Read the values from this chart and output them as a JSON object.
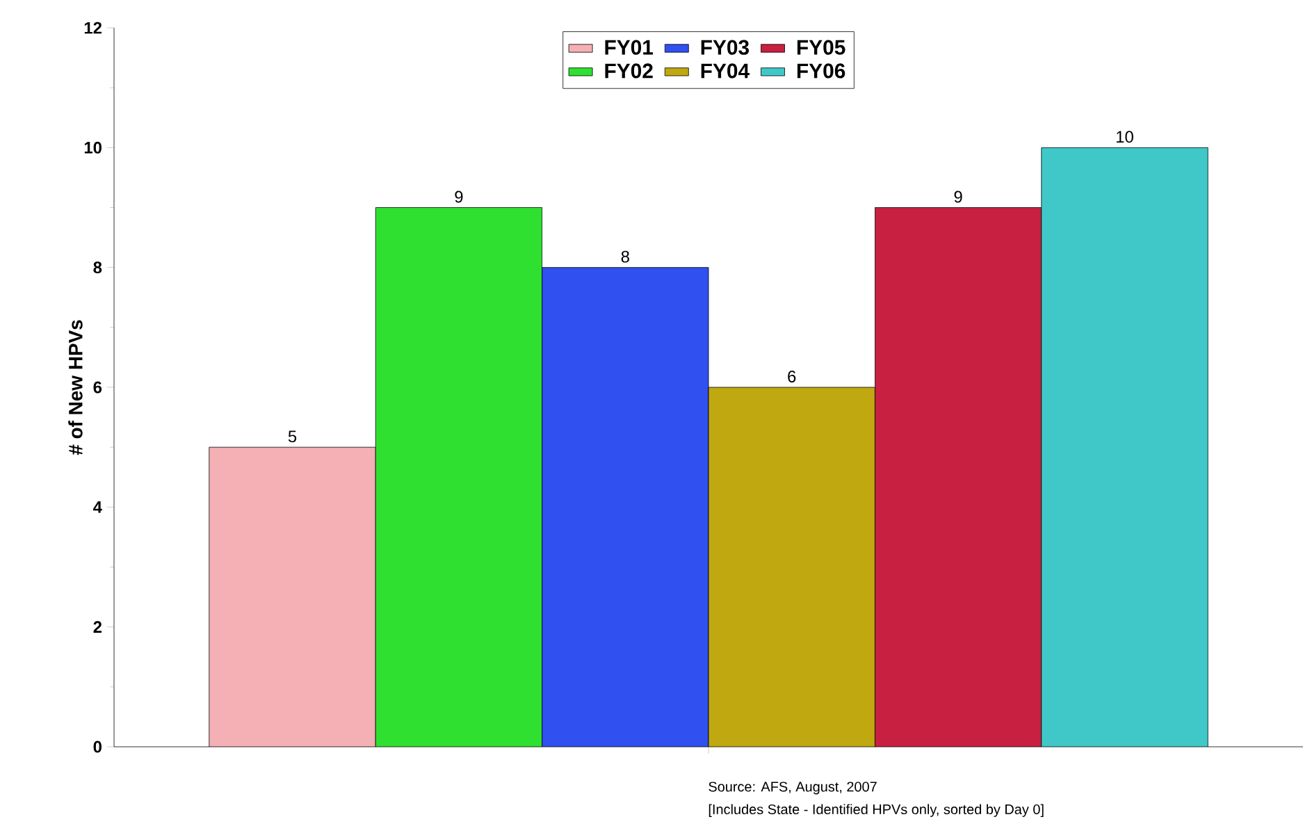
{
  "chart_data": {
    "type": "bar",
    "ylabel": "# of New HPVs",
    "categories": [
      null
    ],
    "series": [
      {
        "name": "FY01",
        "color": "#f4b0b4",
        "values": [
          5
        ]
      },
      {
        "name": "FY02",
        "color": "#30e030",
        "values": [
          9
        ]
      },
      {
        "name": "FY03",
        "color": "#3050f0",
        "values": [
          8
        ]
      },
      {
        "name": "FY04",
        "color": "#c0a810",
        "values": [
          6
        ]
      },
      {
        "name": "FY05",
        "color": "#c82040",
        "values": [
          9
        ]
      },
      {
        "name": "FY06",
        "color": "#40c8c8",
        "values": [
          10
        ]
      }
    ],
    "ylim": [
      0,
      12
    ],
    "yticks": [
      0,
      2,
      4,
      6,
      8,
      10,
      12
    ],
    "data_labels": true,
    "legend": "top",
    "grid": false,
    "annotations": [
      "Source:  AFS, August, 2007",
      "[Includes State - Identified HPVs only, sorted by Day 0]"
    ]
  }
}
